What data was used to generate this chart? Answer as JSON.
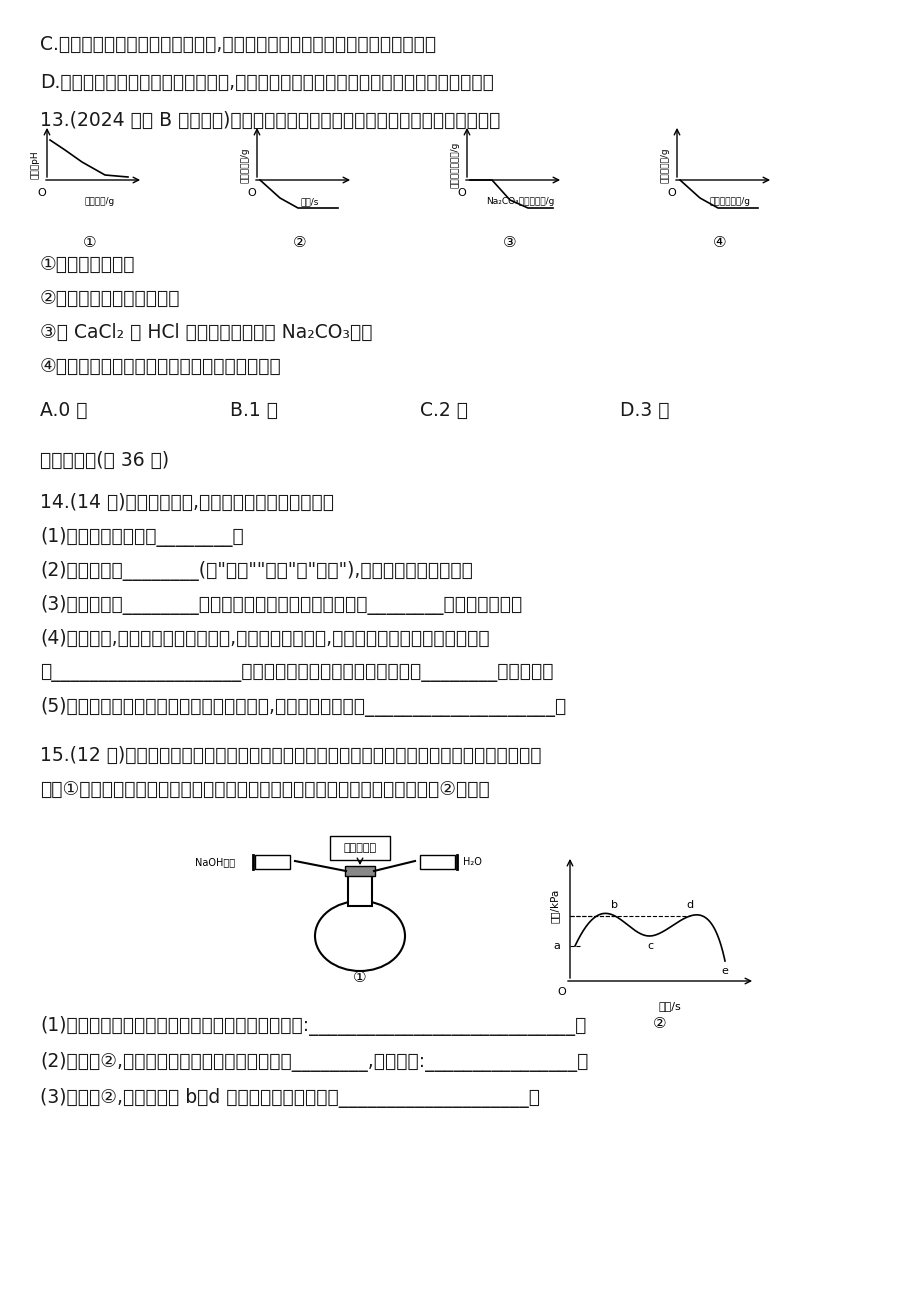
{
  "bg_color": "#ffffff",
  "text_color": "#1a1a1a",
  "lines": [
    "C.碱的溶液能使无色酚酞溶液变红,所以能使无色酚酞溶液变红的溶液一定是碱",
    "D.碳酸盐与稀盐酸反应生成二氧化碳,所以与稀盐酸反应生成二氧化碳的物质可能是碳酸盐",
    "13.(2024 重庆 B 中考改编)下列图像与实验过程对应关系正确的个数为　（　　）"
  ],
  "graph_labels": [
    {
      "ylabel": "溶液的pH",
      "xlabel": "水的质量/g",
      "label_num": "①",
      "shape": "decay"
    },
    {
      "ylabel": "氢气的质量/g",
      "xlabel": "时间/s",
      "label_num": "②",
      "shape": "rise_flat"
    },
    {
      "ylabel": "生成沉淀的质量/g",
      "xlabel": "Na₂CO₃溶液的质量/g",
      "label_num": "③",
      "shape": "delayed_rise"
    },
    {
      "ylabel": "沉淀的质量/g",
      "xlabel": "稀硫酸的质量/g",
      "label_num": "④",
      "shape": "rise_flat2"
    }
  ],
  "items": [
    "①浓盐酸加水稀释",
    "②锌和稀硫酸反应生成氢气",
    "③向 CaCl₂ 和 HCl 的混合溶液中滴加 Na₂CO₃溶液",
    "④向氢氧化钠和氯化钡的混合溶液中滴加稀硫酸"
  ],
  "options": [
    "A.0 个",
    "B.1 个",
    "C.2 个",
    "D.3 个"
  ],
  "section2_title": "二、填空题(共 36 分)",
  "q14_title": "14.(14 分)化学源于生活,学好化学能让生活更美好。",
  "q14_items": [
    "(1)可用于调味品的是________。",
    "(2)利用食醋的________(填\"酸性\"\"碱性\"或\"中性\"),生活中可用于除水垢。",
    "(3)农业上常用________改良酸性土壤。铵态的氮肥不能与________物质混合施用。",
    "(4)在实验室,铁架台使用一段时间后,总会出现锈迹斑斑,用稀盐酸除掉锈斑的化学方程式",
    "为____________________。要收集干燥的氧气、二氧化碳可用________作干燥剂。",
    "(5)用废盐酸来处理造纸厂废液中的氢氧化钠,反应的微观实质是____________________。"
  ],
  "q15_title": "15.(12 分)实验小组的同学们通过实验验证二氧化碳与氢氧化钠溶液发生了化学反应。实验小组",
  "q15_line2": "用图①装置证明二氧化碳能与氢氧化钠发生反应。测得一段时间内压强变化如图②所示。",
  "q15_items": [
    "(1)写出二氧化碳与氢氧化钠溶液反应的化学方程式:____________________________。",
    "(2)依据图②,分析实验中首先注入瓶中的试剂是________,说明理由:________________。",
    "(3)分析图②,实验中实现 b、d 两点压强相等的操作是____________________。"
  ],
  "pressure_sensor_label": "压强传感器",
  "naoh_label": "NaOH溶液",
  "h2o_label": "H₂O",
  "graph2_points": {
    "a": "a",
    "b": "b",
    "c": "c",
    "d": "d",
    "e": "e"
  },
  "graph2_ylabel": "压强/kPa",
  "graph2_xlabel": "时间/s",
  "graph2_label1": "①",
  "graph2_label2": "②"
}
